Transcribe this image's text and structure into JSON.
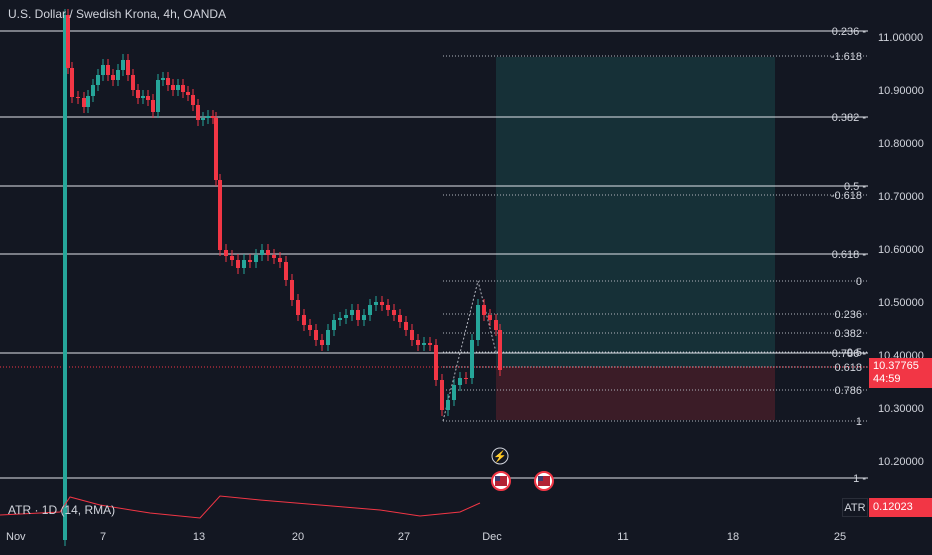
{
  "title": "U.S. Dollar / Swedish Krona, 4h, OANDA",
  "indicator": {
    "label": "ATR · 1D (14, RMA)",
    "name_tag": "ATR",
    "value": "0.12023"
  },
  "current_price": {
    "value": "10.37765",
    "countdown": "44:59"
  },
  "price_axis": [
    "11.00000",
    "10.90000",
    "10.80000",
    "10.70000",
    "10.60000",
    "10.50000",
    "10.40000",
    "10.30000",
    "10.20000"
  ],
  "time_axis": [
    "Nov",
    "7",
    "13",
    "20",
    "27",
    "Dec",
    "11",
    "18",
    "25"
  ],
  "fib_a_labels": [
    "0.236 -",
    "0.382 -",
    "0.5 -",
    "0.618 -",
    "0.786 -",
    "1 -"
  ],
  "fib_b_labels": [
    "-1.618",
    "-0.618",
    "0",
    "0.236",
    "0.382",
    "0.5",
    "0.618",
    "0.786",
    "1"
  ],
  "colors": {
    "background": "#131722",
    "up": "#26a69a",
    "down": "#f23645",
    "grid_text": "#d1d4dc"
  },
  "icons": [
    "lightning-event-icon",
    "us-flag-event-icon",
    "us-flag-event-icon"
  ]
}
